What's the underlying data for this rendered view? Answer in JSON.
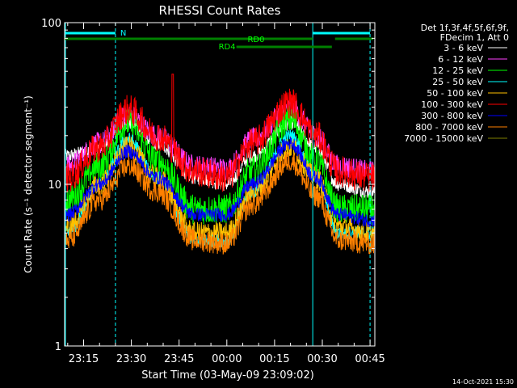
{
  "chart_data": {
    "type": "line",
    "title": "RHESSI Count Rates",
    "xlabel": "Start Time (03-May-09 23:09:02)",
    "ylabel": "Count Rate (s⁻¹ detector segment⁻¹)",
    "y_scale": "log",
    "ylim": [
      1,
      100
    ],
    "xlim": [
      "23:09:02",
      "00:46:30"
    ],
    "x_ticks": [
      "23:15",
      "23:30",
      "23:45",
      "00:00",
      "00:15",
      "00:30",
      "00:45"
    ],
    "y_ticks": [
      "1",
      "10",
      "100"
    ],
    "grid": false,
    "legend_position": "right",
    "legend_header": [
      "Det 1f,3f,4f,5f,6f,9f,",
      "FDecim 1, Att 0"
    ],
    "series": [
      {
        "name": "3 - 6 keV",
        "color": "#ffffff",
        "x": [
          "23:10",
          "23:20",
          "23:29",
          "23:38",
          "23:50",
          "00:00",
          "00:08",
          "00:20",
          "00:28",
          "00:35",
          "00:45"
        ],
        "y": [
          15,
          17,
          24,
          18,
          11,
          10,
          15,
          24,
          17,
          10,
          9
        ]
      },
      {
        "name": "6 - 12 keV",
        "color": "#ff40ff",
        "x": [
          "23:10",
          "23:20",
          "23:29",
          "23:38",
          "23:50",
          "00:00",
          "00:08",
          "00:20",
          "00:28",
          "00:35",
          "00:45"
        ],
        "y": [
          13,
          18,
          27,
          20,
          13,
          12.5,
          19,
          30,
          20,
          13,
          12
        ]
      },
      {
        "name": "12 - 25 keV",
        "color": "#00ff00",
        "x": [
          "23:10",
          "23:20",
          "23:29",
          "23:38",
          "23:50",
          "00:00",
          "00:08",
          "00:20",
          "00:28",
          "00:35",
          "00:45"
        ],
        "y": [
          8,
          13,
          24,
          14,
          7,
          7,
          12,
          25,
          14,
          7,
          7
        ]
      },
      {
        "name": "25 - 50 keV",
        "color": "#00ffff",
        "x": [
          "23:10",
          "23:20",
          "23:29",
          "23:38",
          "23:50",
          "00:00",
          "00:08",
          "00:20",
          "00:28",
          "00:35",
          "00:45"
        ],
        "y": [
          5,
          10,
          19,
          11,
          4.5,
          4.5,
          9,
          20,
          11,
          5,
          5
        ]
      },
      {
        "name": "50 - 100 keV",
        "color": "#ffc000",
        "x": [
          "23:10",
          "23:20",
          "23:29",
          "23:38",
          "23:50",
          "00:00",
          "00:08",
          "00:20",
          "00:28",
          "00:35",
          "00:45"
        ],
        "y": [
          5.5,
          10,
          17,
          11,
          5,
          5,
          9,
          17,
          11,
          5.5,
          5
        ]
      },
      {
        "name": "100 - 300 keV",
        "color": "#ff0000",
        "x": [
          "23:10",
          "23:20",
          "23:29",
          "23:38",
          "23:50",
          "00:00",
          "00:08",
          "00:20",
          "00:28",
          "00:35",
          "00:45"
        ],
        "y": [
          11,
          17,
          29,
          20,
          12,
          11,
          18,
          32,
          20,
          12,
          11
        ]
      },
      {
        "name": "300 - 800 keV",
        "color": "#0000ff",
        "x": [
          "23:10",
          "23:20",
          "23:29",
          "23:38",
          "23:50",
          "00:00",
          "00:08",
          "00:20",
          "00:28",
          "00:35",
          "00:45"
        ],
        "y": [
          6.5,
          10,
          16,
          11,
          6.5,
          6.5,
          10,
          18,
          11,
          6.5,
          6
        ]
      },
      {
        "name": "800 - 7000 keV",
        "color": "#ff8000",
        "x": [
          "23:10",
          "23:20",
          "23:29",
          "23:38",
          "23:50",
          "00:00",
          "00:08",
          "00:20",
          "00:28",
          "00:35",
          "00:45"
        ],
        "y": [
          4.5,
          8,
          13,
          9,
          4.5,
          4.3,
          7.5,
          14,
          8.5,
          4.5,
          4.3
        ]
      },
      {
        "name": "7000 - 15000 keV",
        "color": "#808000",
        "x": [],
        "y": []
      }
    ],
    "annotations": {
      "flag_rows": [
        {
          "label": "N",
          "color": "#00ffff",
          "segments": [
            [
              "23:09:02",
              "23:25"
            ],
            [
              "00:27",
              "00:45"
            ]
          ]
        },
        {
          "label": "RD0",
          "color": "#008000",
          "segments": [
            [
              "23:09:02",
              "00:27"
            ],
            [
              "00:34",
              "00:46"
            ]
          ]
        },
        {
          "label": "RD4",
          "color": "#008000",
          "segments": [
            [
              "00:03",
              "00:33"
            ]
          ]
        }
      ],
      "solid_vertical_lines": [
        "23:09:02",
        "00:27"
      ],
      "dashed_vertical_lines": [
        "23:25",
        "00:45"
      ],
      "spike": {
        "x": "23:43",
        "y": 48
      }
    }
  },
  "footer_timestamp": "14-Oct-2021 15:30"
}
